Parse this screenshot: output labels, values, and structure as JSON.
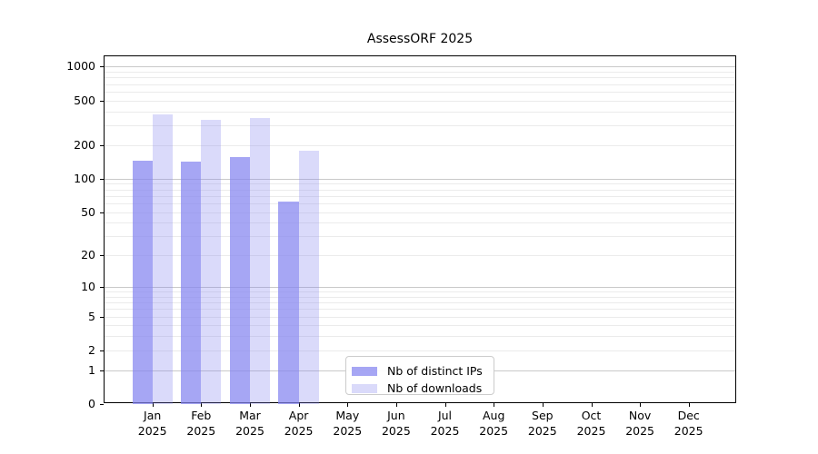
{
  "chart_data": {
    "type": "bar",
    "title": "AssessORF 2025",
    "categories": [
      "Jan",
      "Feb",
      "Mar",
      "Apr",
      "May",
      "Jun",
      "Jul",
      "Aug",
      "Sep",
      "Oct",
      "Nov",
      "Dec"
    ],
    "year": "2025",
    "series": [
      {
        "name": "Nb of distinct IPs",
        "key": "distinct-ips",
        "color": "rgba(132,132,240,0.72)",
        "values": [
          144,
          142,
          155,
          62,
          0,
          0,
          0,
          0,
          0,
          0,
          0,
          0
        ]
      },
      {
        "name": "Nb of downloads",
        "key": "downloads",
        "color": "rgba(132,132,240,0.30)",
        "values": [
          375,
          338,
          347,
          178,
          0,
          0,
          0,
          0,
          0,
          0,
          0,
          0
        ]
      }
    ],
    "yscale": "symlog",
    "yticks": [
      1000,
      500,
      200,
      100,
      50,
      20,
      10,
      5,
      2,
      1,
      0
    ],
    "ylim": [
      0,
      1234
    ],
    "grid": true,
    "legend_position": "inside-bottom-center",
    "colors": {
      "bar_base": "#8484f0",
      "grid_major": "#c9c9c9",
      "grid_minor": "#ebebeb",
      "axis": "#000000",
      "legend_border": "#cccccc"
    }
  }
}
